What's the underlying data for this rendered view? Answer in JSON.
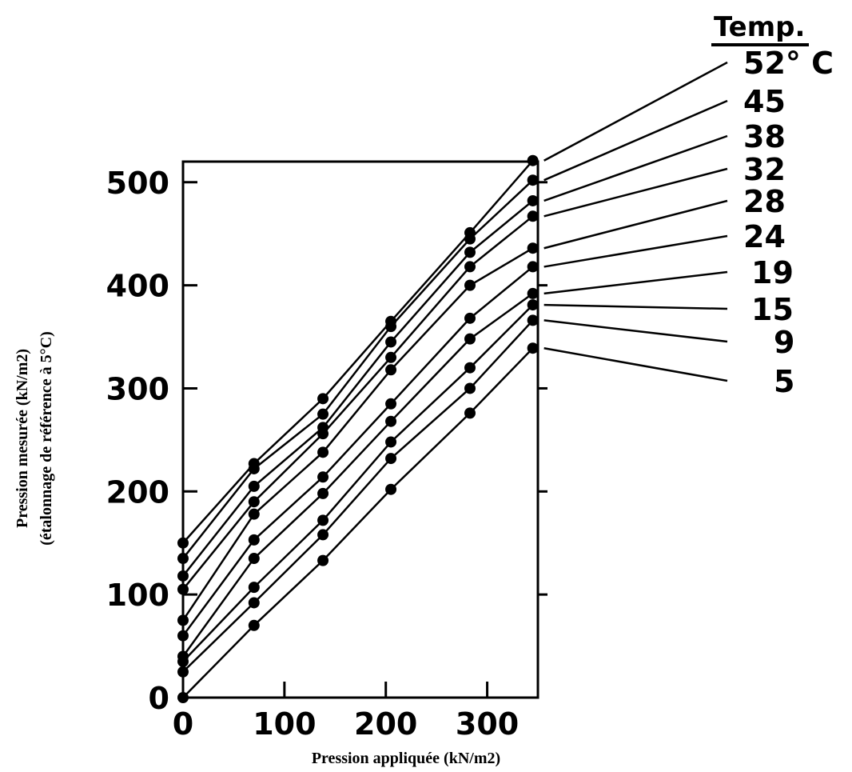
{
  "chart_data": {
    "type": "line",
    "xlabel": "Pression appliquée (kN/m2)",
    "ylabel_lines": [
      "Pression mesurée (kN/m2)",
      "(étalonnage de référence à 5°C)"
    ],
    "xlim": [
      0,
      350
    ],
    "ylim": [
      0,
      520
    ],
    "xticks": [
      0,
      100,
      200,
      300
    ],
    "yticks": [
      0,
      100,
      200,
      300,
      400,
      500
    ],
    "grid": false,
    "legend": {
      "title": "Temp.",
      "position": "right",
      "unit": "C"
    },
    "x": [
      0,
      70,
      138,
      205,
      283,
      345
    ],
    "series": [
      {
        "name": "52° C",
        "values": [
          150,
          227,
          290,
          365,
          451,
          521
        ]
      },
      {
        "name": "45",
        "values": [
          135,
          222,
          275,
          360,
          445,
          502
        ]
      },
      {
        "name": "38",
        "values": [
          118,
          205,
          262,
          345,
          432,
          482
        ]
      },
      {
        "name": "32",
        "values": [
          105,
          190,
          256,
          330,
          418,
          467
        ]
      },
      {
        "name": "28",
        "values": [
          75,
          178,
          238,
          318,
          400,
          436
        ]
      },
      {
        "name": "24",
        "values": [
          60,
          153,
          214,
          285,
          368,
          418
        ]
      },
      {
        "name": "19",
        "values": [
          40,
          135,
          198,
          268,
          348,
          392
        ]
      },
      {
        "name": "15",
        "values": [
          35,
          107,
          172,
          248,
          320,
          381
        ]
      },
      {
        "name": "9",
        "values": [
          25,
          92,
          158,
          232,
          300,
          366
        ]
      },
      {
        "name": "5",
        "values": [
          0,
          70,
          133,
          202,
          276,
          339
        ]
      }
    ]
  }
}
